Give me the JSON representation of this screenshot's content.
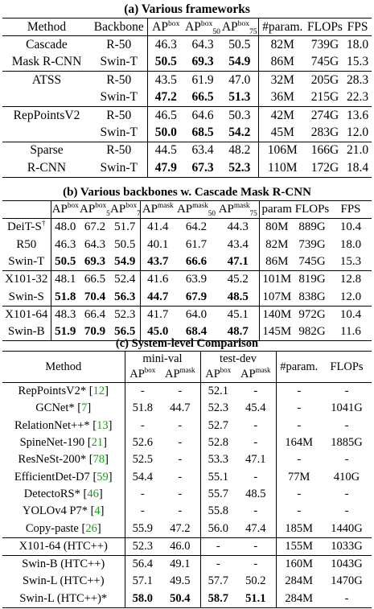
{
  "table_a": {
    "caption": "(a) Various frameworks",
    "headers": [
      "Method",
      "Backbone",
      "AP",
      "box",
      "AP",
      "box",
      "50",
      "AP",
      "box",
      "75",
      "#param.",
      "FLOPs",
      "FPS"
    ],
    "groups": [
      {
        "method": [
          "Cascade",
          "Mask R-CNN"
        ],
        "rows": [
          {
            "backbone": "R-50",
            "ap": "46.3",
            "ap50": "64.3",
            "ap75": "50.5",
            "param": "82M",
            "flops": "739G",
            "fps": "18.0"
          },
          {
            "backbone": "Swin-T",
            "ap": "50.5",
            "ap50": "69.3",
            "ap75": "54.9",
            "param": "86M",
            "flops": "745G",
            "fps": "15.3"
          }
        ]
      },
      {
        "method": [
          "ATSS",
          ""
        ],
        "rows": [
          {
            "backbone": "R-50",
            "ap": "43.5",
            "ap50": "61.9",
            "ap75": "47.0",
            "param": "32M",
            "flops": "205G",
            "fps": "28.3"
          },
          {
            "backbone": "Swin-T",
            "ap": "47.2",
            "ap50": "66.5",
            "ap75": "51.3",
            "param": "36M",
            "flops": "215G",
            "fps": "22.3"
          }
        ]
      },
      {
        "method": [
          "RepPointsV2",
          ""
        ],
        "rows": [
          {
            "backbone": "R-50",
            "ap": "46.5",
            "ap50": "64.6",
            "ap75": "50.3",
            "param": "42M",
            "flops": "274G",
            "fps": "13.6"
          },
          {
            "backbone": "Swin-T",
            "ap": "50.0",
            "ap50": "68.5",
            "ap75": "54.2",
            "param": "45M",
            "flops": "283G",
            "fps": "12.0"
          }
        ]
      },
      {
        "method": [
          "Sparse",
          "R-CNN"
        ],
        "rows": [
          {
            "backbone": "R-50",
            "ap": "44.5",
            "ap50": "63.4",
            "ap75": "48.2",
            "param": "106M",
            "flops": "166G",
            "fps": "21.0"
          },
          {
            "backbone": "Swin-T",
            "ap": "47.9",
            "ap50": "67.3",
            "ap75": "52.3",
            "param": "110M",
            "flops": "172G",
            "fps": "18.4"
          }
        ]
      }
    ]
  },
  "table_b": {
    "caption": "(b) Various backbones w. Cascade Mask R-CNN",
    "headers": [
      "AP",
      "box",
      "AP",
      "box",
      "50",
      "AP",
      "box",
      "75",
      "AP",
      "mask",
      "AP",
      "mask",
      "50",
      "AP",
      "mask",
      "75",
      "param",
      "FLOPs",
      "FPS"
    ],
    "groups": [
      [
        {
          "name": "DeiT-S",
          "dag": "†",
          "v": [
            "48.0",
            "67.2",
            "51.7",
            "41.4",
            "64.2",
            "44.3",
            "80M",
            "889G",
            "10.4"
          ]
        },
        {
          "name": "R50",
          "dag": "",
          "v": [
            "46.3",
            "64.3",
            "50.5",
            "40.1",
            "61.7",
            "43.4",
            "82M",
            "739G",
            "18.0"
          ]
        },
        {
          "name": "Swin-T",
          "dag": "",
          "v": [
            "50.5",
            "69.3",
            "54.9",
            "43.7",
            "66.6",
            "47.1",
            "86M",
            "745G",
            "15.3"
          ]
        }
      ],
      [
        {
          "name": "X101-32",
          "dag": "",
          "v": [
            "48.1",
            "66.5",
            "52.4",
            "41.6",
            "63.9",
            "45.2",
            "101M",
            "819G",
            "12.8"
          ]
        },
        {
          "name": "Swin-S",
          "dag": "",
          "v": [
            "51.8",
            "70.4",
            "56.3",
            "44.7",
            "67.9",
            "48.5",
            "107M",
            "838G",
            "12.0"
          ]
        }
      ],
      [
        {
          "name": "X101-64",
          "dag": "",
          "v": [
            "48.3",
            "66.4",
            "52.3",
            "41.7",
            "64.0",
            "45.1",
            "140M",
            "972G",
            "10.4"
          ]
        },
        {
          "name": "Swin-B",
          "dag": "",
          "v": [
            "51.9",
            "70.9",
            "56.5",
            "45.0",
            "68.4",
            "48.7",
            "145M",
            "982G",
            "11.6"
          ]
        }
      ]
    ]
  },
  "table_c": {
    "caption": "(c) System-level Comparison",
    "headers": {
      "method": "Method",
      "minival": "mini-val",
      "testdev": "test-dev",
      "ap": "AP",
      "box": "box",
      "mask": "mask",
      "param": "#param.",
      "flops": "FLOPs"
    },
    "groups": [
      [
        {
          "name": "RepPointsV2*",
          "ref": "12",
          "v": [
            "-",
            "-",
            "52.1",
            "-",
            "-",
            "-"
          ]
        },
        {
          "name": "GCNet*",
          "ref": "7",
          "v": [
            "51.8",
            "44.7",
            "52.3",
            "45.4",
            "-",
            "1041G"
          ]
        },
        {
          "name": "RelationNet++*",
          "ref": "13",
          "v": [
            "-",
            "-",
            "52.7",
            "-",
            "-",
            "-"
          ]
        },
        {
          "name": "SpineNet-190",
          "ref": "21",
          "v": [
            "52.6",
            "-",
            "52.8",
            "-",
            "164M",
            "1885G"
          ]
        },
        {
          "name": "ResNeSt-200*",
          "ref": "78",
          "v": [
            "52.5",
            "-",
            "53.3",
            "47.1",
            "-",
            "-"
          ]
        },
        {
          "name": "EfficientDet-D7",
          "ref": "59",
          "v": [
            "54.4",
            "-",
            "55.1",
            "-",
            "77M",
            "410G"
          ]
        },
        {
          "name": "DetectoRS*",
          "ref": "46",
          "v": [
            "-",
            "-",
            "55.7",
            "48.5",
            "-",
            "-"
          ]
        },
        {
          "name": "YOLOv4 P7*",
          "ref": "4",
          "v": [
            "-",
            "-",
            "55.8",
            "-",
            "-",
            "-"
          ]
        },
        {
          "name": "Copy-paste",
          "ref": "26",
          "v": [
            "55.9",
            "47.2",
            "56.0",
            "47.4",
            "185M",
            "1440G"
          ]
        }
      ],
      [
        {
          "name": "X101-64 (HTC++)",
          "ref": "",
          "v": [
            "52.3",
            "46.0",
            "-",
            "-",
            "155M",
            "1033G"
          ]
        }
      ],
      [
        {
          "name": "Swin-B (HTC++)",
          "ref": "",
          "v": [
            "56.4",
            "49.1",
            "-",
            "-",
            "160M",
            "1043G"
          ]
        },
        {
          "name": "Swin-L (HTC++)",
          "ref": "",
          "v": [
            "57.1",
            "49.5",
            "57.7",
            "50.2",
            "284M",
            "1470G"
          ]
        },
        {
          "name": "Swin-L (HTC++)*",
          "ref": "",
          "v": [
            "58.0",
            "50.4",
            "58.7",
            "51.1",
            "284M",
            "-"
          ]
        }
      ]
    ]
  }
}
